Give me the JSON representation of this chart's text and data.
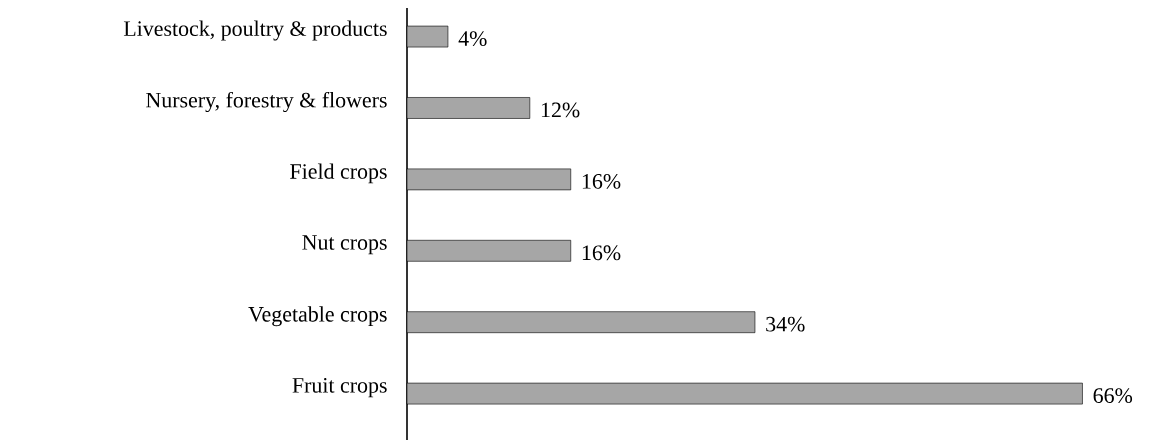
{
  "chart_data": {
    "type": "bar",
    "orientation": "horizontal",
    "categories": [
      "Livestock, poultry & products",
      "Nursery, forestry & flowers",
      "Field crops",
      "Nut crops",
      "Vegetable crops",
      "Fruit crops"
    ],
    "values": [
      4,
      12,
      16,
      16,
      34,
      66
    ],
    "value_labels": [
      "4%",
      "12%",
      "16%",
      "16%",
      "34%",
      "66%"
    ],
    "color": "#a6a6a6"
  }
}
